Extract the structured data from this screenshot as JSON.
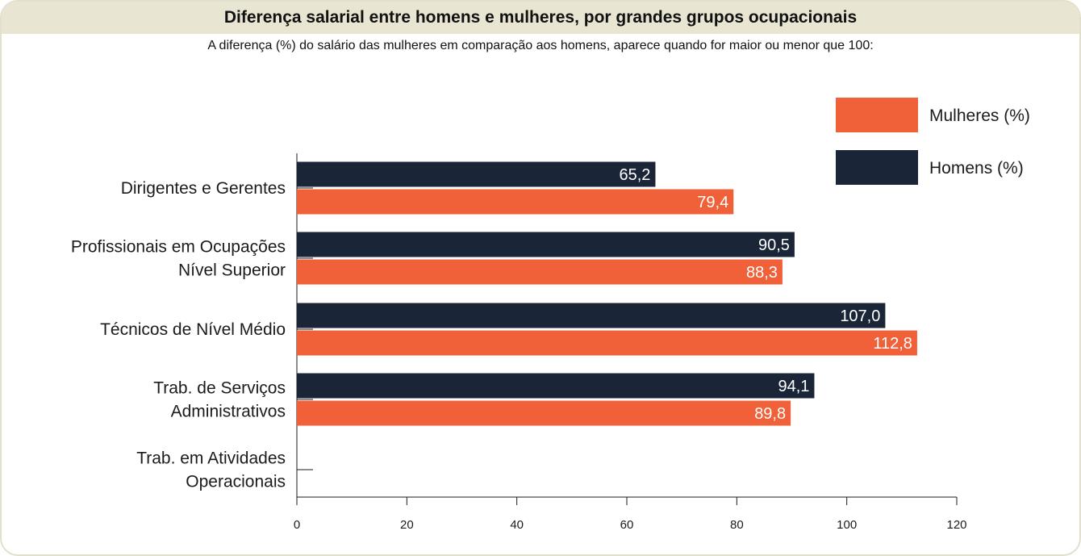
{
  "header": {
    "title": "Diferença salarial entre homens e mulheres, por grandes grupos ocupacionais",
    "subtitle": "A diferença (%) do salário das mulheres em comparação aos homens, aparece quando for maior ou menor que 100:"
  },
  "chart_data": {
    "type": "bar",
    "orientation": "horizontal",
    "categories": [
      [
        "Dirigentes e Gerentes"
      ],
      [
        "Profissionais em Ocupações",
        "Nível Superior"
      ],
      [
        "Técnicos de Nível Médio"
      ],
      [
        "Trab. de Serviços",
        "Administrativos"
      ],
      [
        "Trab. em Atividades",
        "Operacionais"
      ]
    ],
    "series": [
      {
        "name": "Homens (%)",
        "color": "#1b2538",
        "values": [
          65.2,
          90.5,
          107.0,
          94.1,
          null
        ],
        "labels": [
          "65,2",
          "90,5",
          "107,0",
          "94,1",
          ""
        ]
      },
      {
        "name": "Mulheres (%)",
        "color": "#f0613a",
        "values": [
          79.4,
          88.3,
          112.8,
          89.8,
          null
        ],
        "labels": [
          "79,4",
          "88,3",
          "112,8",
          "89,8",
          ""
        ]
      }
    ],
    "xlim": [
      0,
      120
    ],
    "xticks": [
      0,
      20,
      40,
      60,
      80,
      100,
      120
    ],
    "grid": false,
    "legend_position": "top-right",
    "legend_order": [
      "Mulheres (%)",
      "Homens (%)"
    ]
  }
}
